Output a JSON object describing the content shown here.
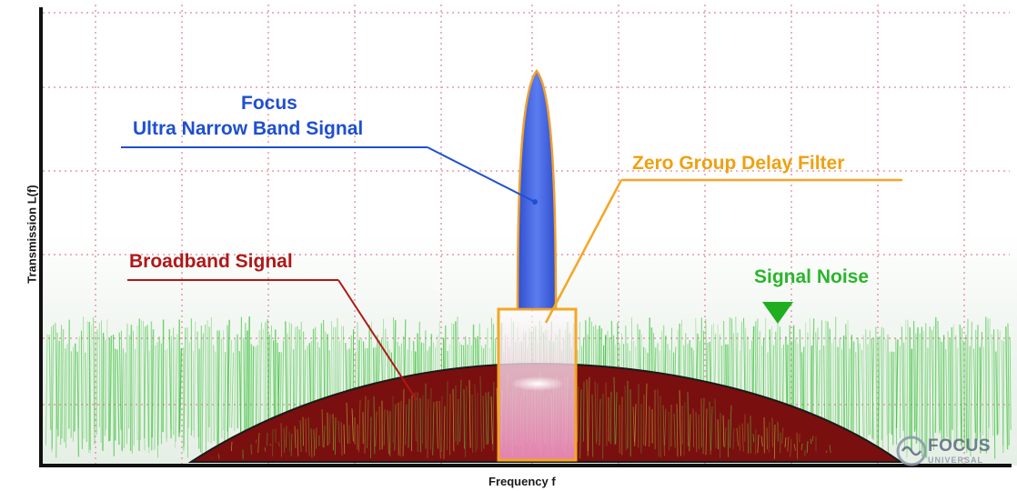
{
  "labels": {
    "focus": "Focus",
    "ultra_narrow": "Ultra Narrow Band Signal",
    "zero_group_delay": "Zero Group Delay Filter",
    "broadband": "Broadband Signal",
    "signal_noise": "Signal Noise",
    "y_axis": "Transmission L(f)",
    "x_axis": "Frequency f"
  },
  "logo": {
    "name": "FOCUS",
    "sub": "UNIVERSAL"
  },
  "colors": {
    "narrow_band": "#3f63d8",
    "filter": "#f5a623",
    "broadband": "#7a0f0f",
    "noise": "#39c239",
    "grid": "#e59aa8",
    "axis": "#111111"
  }
}
